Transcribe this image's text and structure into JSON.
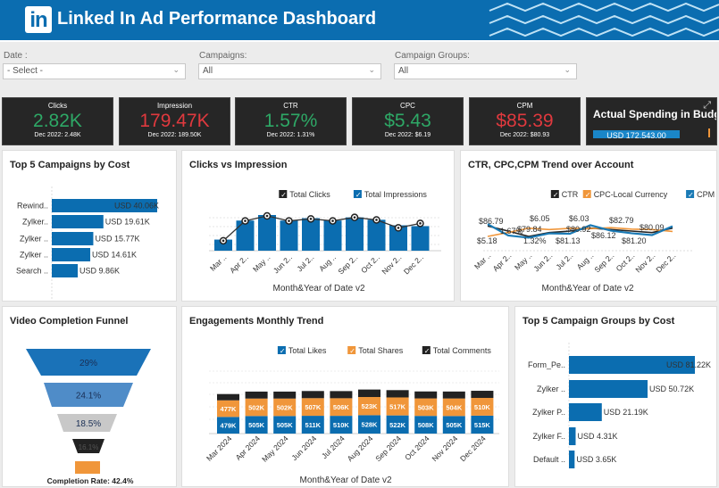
{
  "header": {
    "title": "Linked In Ad Performance Dashboard",
    "logo_text": "in",
    "brand_color": "#0b6db0"
  },
  "filters": [
    {
      "label": "Date :",
      "value": "- Select -"
    },
    {
      "label": "Campaigns:",
      "value": "All"
    },
    {
      "label": "Campaign Groups:",
      "value": "All"
    }
  ],
  "kpis": [
    {
      "title": "Clicks",
      "value": "2.82K",
      "sub": "Dec 2022: 2.48K",
      "color": "#2ea866"
    },
    {
      "title": "Impression",
      "value": "179.47K",
      "sub": "Dec 2022: 189.50K",
      "color": "#e0393e"
    },
    {
      "title": "CTR",
      "value": "1.57%",
      "sub": "Dec 2022: 1.31%",
      "color": "#2ea866"
    },
    {
      "title": "CPC",
      "value": "$5.43",
      "sub": "Dec 2022: $6.19",
      "color": "#2ea866"
    },
    {
      "title": "CPM",
      "value": "$85.39",
      "sub": "Dec 2022: $80.93",
      "color": "#e0393e"
    }
  ],
  "spending": {
    "title": "Actual Spending in Budget",
    "value": "USD 172,543.00"
  },
  "top_campaigns": {
    "title": "Top 5 Campaigns by Cost"
  },
  "clicks_impr": {
    "title": "Clicks vs Impression"
  },
  "ctr_trend": {
    "title": "CTR, CPC,CPM Trend over Account"
  },
  "funnel": {
    "title": "Video Completion Funnel",
    "completion": "Completion Rate: 42.4%"
  },
  "engagement": {
    "title": "Engagements Monthly Trend"
  },
  "top_groups": {
    "title": "Top 5 Campaign Groups by Cost"
  },
  "chart_data": [
    {
      "type": "bar",
      "orientation": "horizontal",
      "title": "Top 5 Campaigns by Cost",
      "categories": [
        "Rewind..",
        "Zylker..",
        "Zylker ..",
        "Zylker ..",
        "Search .."
      ],
      "values": [
        40.06,
        19.61,
        15.77,
        14.61,
        9.86
      ],
      "labels": [
        "USD 40.06K",
        "USD 19.61K",
        "USD 15.77K",
        "USD 14.61K",
        "USD 9.86K"
      ],
      "unit": "USD K",
      "color": "#0b6db0"
    },
    {
      "type": "bar+line",
      "title": "Clicks vs Impression",
      "xlabel": "Month&Year of Date v2",
      "categories": [
        "Mar ..",
        "Apr 2..",
        "May ..",
        "Jun 2..",
        "Jul 2..",
        "Aug ..",
        "Sep 2..",
        "Oct 2..",
        "Nov 2..",
        "Dec 2.."
      ],
      "series": [
        {
          "name": "Total Clicks",
          "type": "line",
          "color": "#222222",
          "values": [
            100,
            300,
            350,
            300,
            320,
            300,
            335,
            310,
            230,
            275
          ]
        },
        {
          "name": "Total Impressions",
          "type": "bar",
          "color": "#0b6db0",
          "values": [
            7,
            19,
            22.5,
            19,
            20.5,
            19,
            21,
            19.5,
            16,
            15.5
          ]
        }
      ],
      "legend": "top-right",
      "grid": true
    },
    {
      "type": "line",
      "title": "CTR, CPC,CPM Trend over Account",
      "xlabel": "Month&Year of Date v2",
      "categories": [
        "Mar ..",
        "Apr 2..",
        "May ..",
        "Jun 2..",
        "Jul 2..",
        "Aug ..",
        "Sep 2..",
        "Oct 2..",
        "Nov 2..",
        "Dec 2.."
      ],
      "series": [
        {
          "name": "CTR",
          "color": "#222222",
          "values": [
            1.67,
            1.5,
            1.32,
            1.45,
            1.5,
            1.6,
            1.55,
            1.5,
            1.45,
            1.6
          ]
        },
        {
          "name": "CPC-Local Currency",
          "color": "#f0963a",
          "values": [
            5.18,
            5.6,
            6.05,
            5.9,
            6.03,
            6.0,
            6.1,
            5.95,
            5.9,
            5.7
          ]
        },
        {
          "name": "CPM",
          "color": "#1a7ab5",
          "values": [
            86.79,
            79.84,
            78.5,
            81.13,
            80.92,
            86.12,
            82.79,
            81.2,
            80.09,
            85.5
          ]
        }
      ],
      "data_labels": [
        "$86.79",
        "1.67%",
        "$5.18",
        "$6.05",
        "$79.84",
        "1.32%",
        "$6.03",
        "$80.92",
        "$81.13",
        "$82.79",
        "$86.12",
        "$80.09",
        "$81.20"
      ],
      "legend": "top-right"
    },
    {
      "type": "funnel",
      "title": "Video Completion Funnel",
      "values": [
        29,
        24.1,
        18.5,
        16.1,
        0
      ],
      "labels": [
        "29%",
        "24.1%",
        "18.5%",
        "16.1%",
        ""
      ],
      "colors": [
        "#1a72b8",
        "#4f8cc8",
        "#c8c8c8",
        "#222222",
        "#f0963a"
      ]
    },
    {
      "type": "stacked_bar",
      "title": "Engagements Monthly Trend",
      "xlabel": "Month&Year of Date v2",
      "categories": [
        "Mar 2024",
        "Apr 2024",
        "May 2024",
        "Jun 2024",
        "Jul 2024",
        "Aug 2024",
        "Sep 2024",
        "Oct 2024",
        "Nov 2024",
        "Dec 2024"
      ],
      "series": [
        {
          "name": "Total Likes",
          "color": "#0b6db0",
          "values": [
            479,
            505,
            505,
            511,
            510,
            528,
            522,
            508,
            505,
            515
          ],
          "labels": [
            "479K",
            "505K",
            "505K",
            "511K",
            "510K",
            "528K",
            "522K",
            "508K",
            "505K",
            "515K"
          ]
        },
        {
          "name": "Total Shares",
          "color": "#f0963a",
          "values": [
            477,
            502,
            502,
            507,
            506,
            523,
            517,
            503,
            504,
            510
          ],
          "labels": [
            "477K",
            "502K",
            "502K",
            "507K",
            "506K",
            "523K",
            "517K",
            "503K",
            "504K",
            "510K"
          ]
        },
        {
          "name": "Total Comments",
          "color": "#222222",
          "values": [
            180,
            200,
            200,
            205,
            205,
            215,
            210,
            200,
            200,
            205
          ]
        }
      ],
      "legend": "top-right",
      "grid": true
    },
    {
      "type": "bar",
      "orientation": "horizontal",
      "title": "Top 5 Campaign Groups by Cost",
      "categories": [
        "Form_Pe..",
        "Zylker ..",
        "Zylker P..",
        "Zylker F..",
        "Default .."
      ],
      "values": [
        81.22,
        50.72,
        21.19,
        4.31,
        3.65
      ],
      "labels": [
        "USD 81.22K",
        "USD 50.72K",
        "USD 21.19K",
        "USD 4.31K",
        "USD 3.65K"
      ],
      "unit": "USD K",
      "color": "#0b6db0"
    }
  ]
}
